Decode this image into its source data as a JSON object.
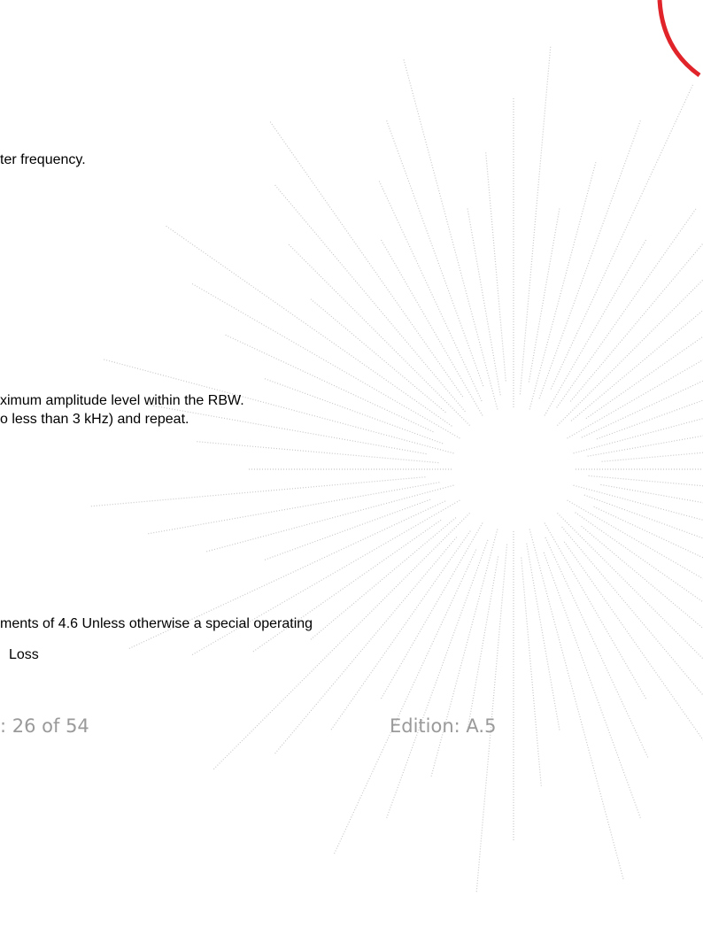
{
  "body": {
    "lines": [
      "ter frequency.",
      "ximum amplitude level within the RBW.",
      "o less than 3 kHz) and repeat.",
      "ments of 4.6 Unless otherwise a special operating",
      "Loss"
    ]
  },
  "footer": {
    "page": ": 26 of 54",
    "edition": "Edition: A.5"
  }
}
